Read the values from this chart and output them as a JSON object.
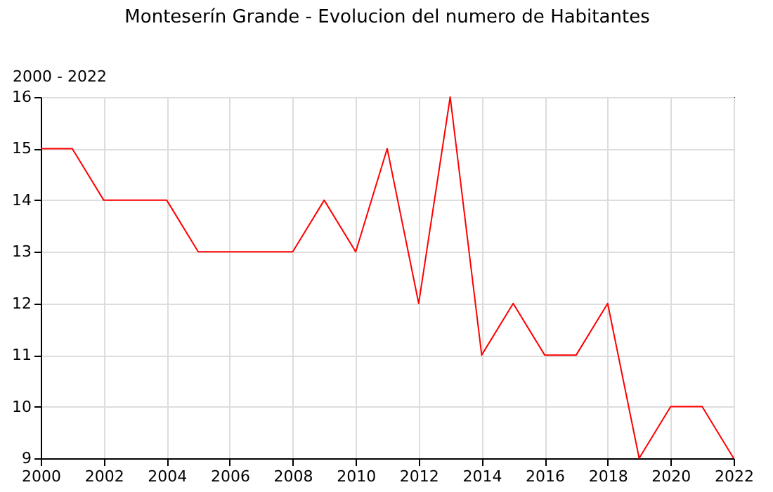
{
  "chart_data": {
    "type": "line",
    "title": "Monteserín Grande - Evolucion del numero de Habitantes",
    "annotations": [
      "2000 - 2022"
    ],
    "x": [
      2000,
      2001,
      2002,
      2003,
      2004,
      2005,
      2006,
      2007,
      2008,
      2009,
      2010,
      2011,
      2012,
      2013,
      2014,
      2015,
      2016,
      2017,
      2018,
      2019,
      2020,
      2021,
      2022
    ],
    "series": [
      {
        "color": "#ff0000",
        "values": [
          15,
          15,
          14,
          14,
          14,
          13,
          13,
          13,
          13,
          14,
          13,
          15,
          12,
          16,
          11,
          12,
          11,
          11,
          12,
          9,
          10,
          10,
          9
        ]
      }
    ],
    "xlim": [
      2000,
      2022
    ],
    "xticks": [
      2000,
      2002,
      2004,
      2006,
      2008,
      2010,
      2012,
      2014,
      2016,
      2018,
      2020,
      2022
    ],
    "ylim": [
      9,
      16
    ],
    "yticks": [
      9,
      10,
      11,
      12,
      13,
      14,
      15,
      16
    ],
    "grid": true,
    "legend": false,
    "marker": "none",
    "line_style": "solid"
  }
}
